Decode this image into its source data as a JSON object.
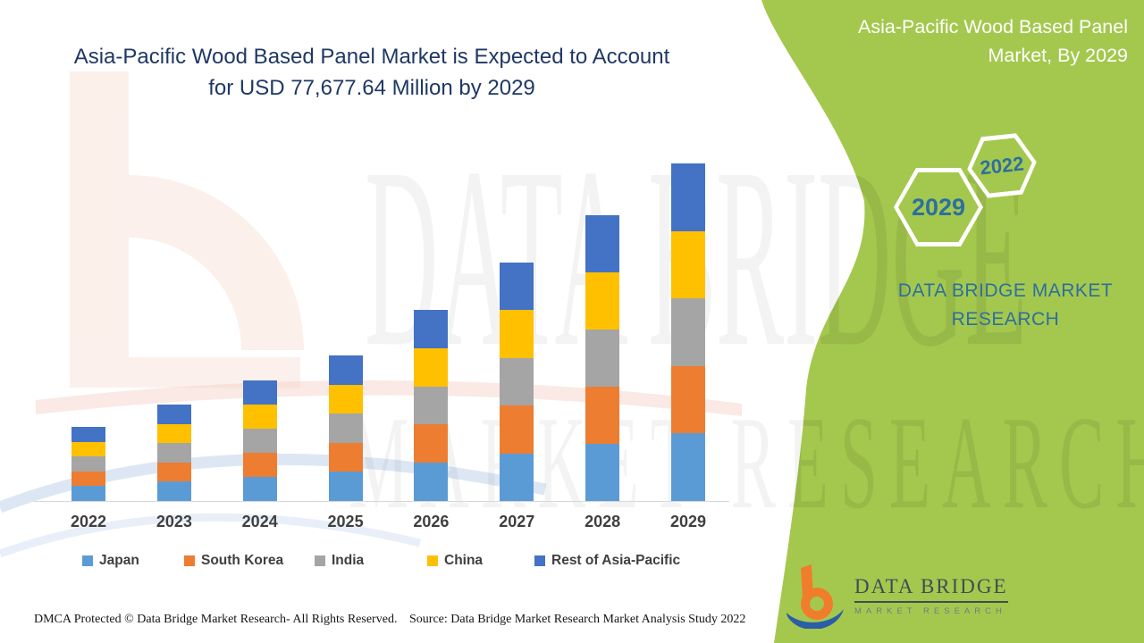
{
  "page_title": {
    "line1": "Asia-Pacific Wood Based Panel Market is Expected to Account",
    "line2": "for USD 77,677.64 Million by 2029"
  },
  "side_panel": {
    "title_line1": "Asia-Pacific Wood Based Panel",
    "title_line2": "Market, By 2029",
    "hexagons": [
      {
        "label": "2029"
      },
      {
        "label": "2022"
      }
    ],
    "brand_line1": "DATA BRIDGE MARKET",
    "brand_line2": "RESEARCH"
  },
  "logo": {
    "name": "DATA BRIDGE",
    "subtitle": "MARKET RESEARCH"
  },
  "watermark": {
    "line1": "DATA BRIDGE",
    "line2": "MARKET RESEARCH"
  },
  "footer": {
    "left": "DMCA Protected © Data Bridge Market Research- All Rights Reserved.",
    "right": "Source: Data Bridge Market Research Market Analysis Study 2022"
  },
  "colors": {
    "panel_green": "#a4c84e",
    "title_navy": "#1f3864",
    "steel_blue": "#2d6f9e",
    "axis_text": "#3f3f3f"
  },
  "chart_data": {
    "type": "bar",
    "stacked": true,
    "title": "Asia-Pacific Wood Based Panel Market is Expected to Account for USD 77,677.64 Million by 2029",
    "xlabel": "",
    "ylabel": "",
    "y_axis_shown": false,
    "legend_position": "bottom",
    "ylim": [
      0,
      80000
    ],
    "categories": [
      "2022",
      "2023",
      "2024",
      "2025",
      "2026",
      "2027",
      "2028",
      "2029"
    ],
    "series": [
      {
        "name": "Japan",
        "color": "#5b9bd5",
        "values": [
          3411,
          4439,
          5548,
          6699,
          8795,
          10974,
          13152,
          15535.53
        ]
      },
      {
        "name": "South Korea",
        "color": "#ed7d31",
        "values": [
          3411,
          4439,
          5548,
          6699,
          8795,
          10974,
          13152,
          15535.53
        ]
      },
      {
        "name": "India",
        "color": "#a5a5a5",
        "values": [
          3411,
          4439,
          5548,
          6699,
          8795,
          10974,
          13152,
          15535.53
        ]
      },
      {
        "name": "China",
        "color": "#ffc000",
        "values": [
          3411,
          4439,
          5548,
          6699,
          8795,
          10974,
          13152,
          15535.53
        ]
      },
      {
        "name": "Rest of Asia-Pacific",
        "color": "#4472c4",
        "values": [
          3411,
          4439,
          5548,
          6699,
          8795,
          10974,
          13152,
          15535.53
        ]
      }
    ],
    "category_totals": [
      17055,
      22195,
      27740,
      33495,
      43975,
      54870,
      65760,
      77677.64
    ]
  }
}
